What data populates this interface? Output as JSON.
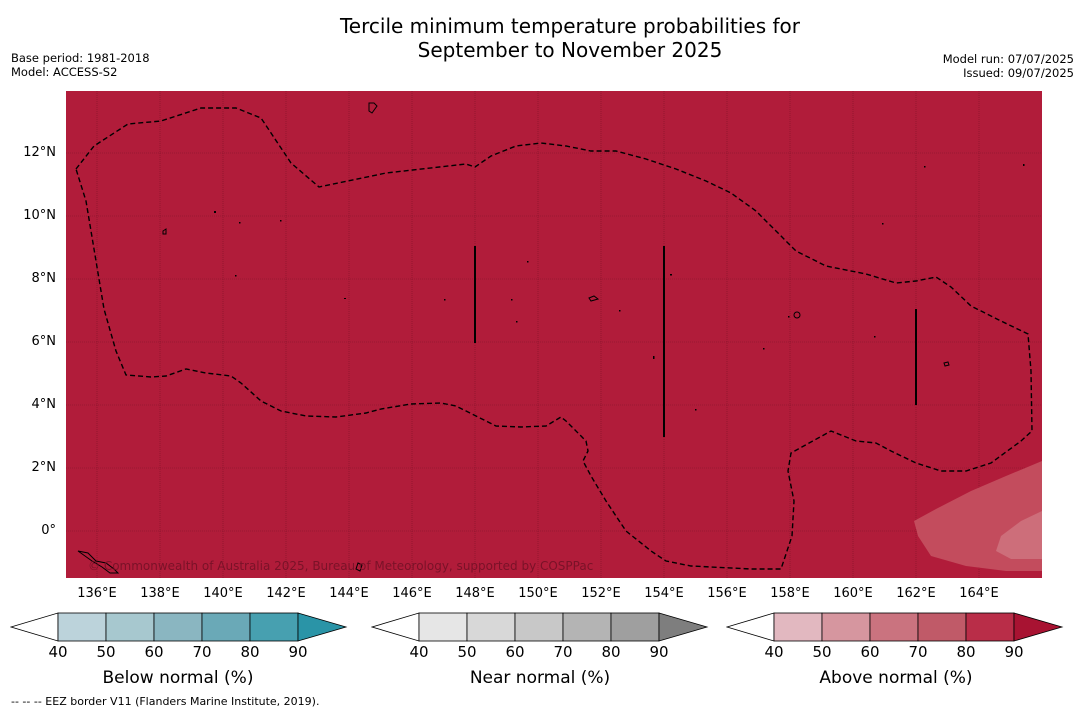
{
  "title": {
    "line1": "Tercile minimum temperature probabilities for",
    "line2": "September to November 2025"
  },
  "meta_left": {
    "base_period": "Base period: 1981-2018",
    "model": "Model: ACCESS-S2"
  },
  "meta_right": {
    "model_run": "Model run: 07/07/2025",
    "issued": "Issued: 09/07/2025"
  },
  "y_axis": [
    "12°N",
    "10°N",
    "8°N",
    "6°N",
    "4°N",
    "2°N",
    "0°"
  ],
  "x_axis": [
    "136°E",
    "138°E",
    "140°E",
    "142°E",
    "144°E",
    "146°E",
    "148°E",
    "150°E",
    "152°E",
    "154°E",
    "156°E",
    "158°E",
    "160°E",
    "162°E",
    "164°E"
  ],
  "copyright": "© Commonwealth of Australia 2025, Bureau of Meteorology, supported by COSPPac",
  "colorbars": [
    {
      "label": "Below normal (%)",
      "ticks": [
        "40",
        "50",
        "60",
        "70",
        "80",
        "90"
      ],
      "colors": [
        "#ffffff",
        "#bcd3db",
        "#a7c8cf",
        "#8ab6c1",
        "#6aa9b7",
        "#47a0b0",
        "#2a94a7"
      ]
    },
    {
      "label": "Near normal (%)",
      "ticks": [
        "40",
        "50",
        "60",
        "70",
        "80",
        "90"
      ],
      "colors": [
        "#ffffff",
        "#e6e6e6",
        "#d8d8d8",
        "#c8c8c8",
        "#b4b4b4",
        "#9f9f9f",
        "#7e7e7e"
      ]
    },
    {
      "label": "Above normal (%)",
      "ticks": [
        "40",
        "50",
        "60",
        "70",
        "80",
        "90"
      ],
      "colors": [
        "#ffffff",
        "#e2b8c0",
        "#d6969f",
        "#ca737f",
        "#c05a68",
        "#b92d48",
        "#a81332"
      ]
    }
  ],
  "footnote": "--  --  -- EEZ border V11 (Flanders Marine Institute, 2019).",
  "map_colors": {
    "background": "#b11c3a",
    "level_70": "#c34c5d",
    "level_60": "#cd6e7a"
  }
}
